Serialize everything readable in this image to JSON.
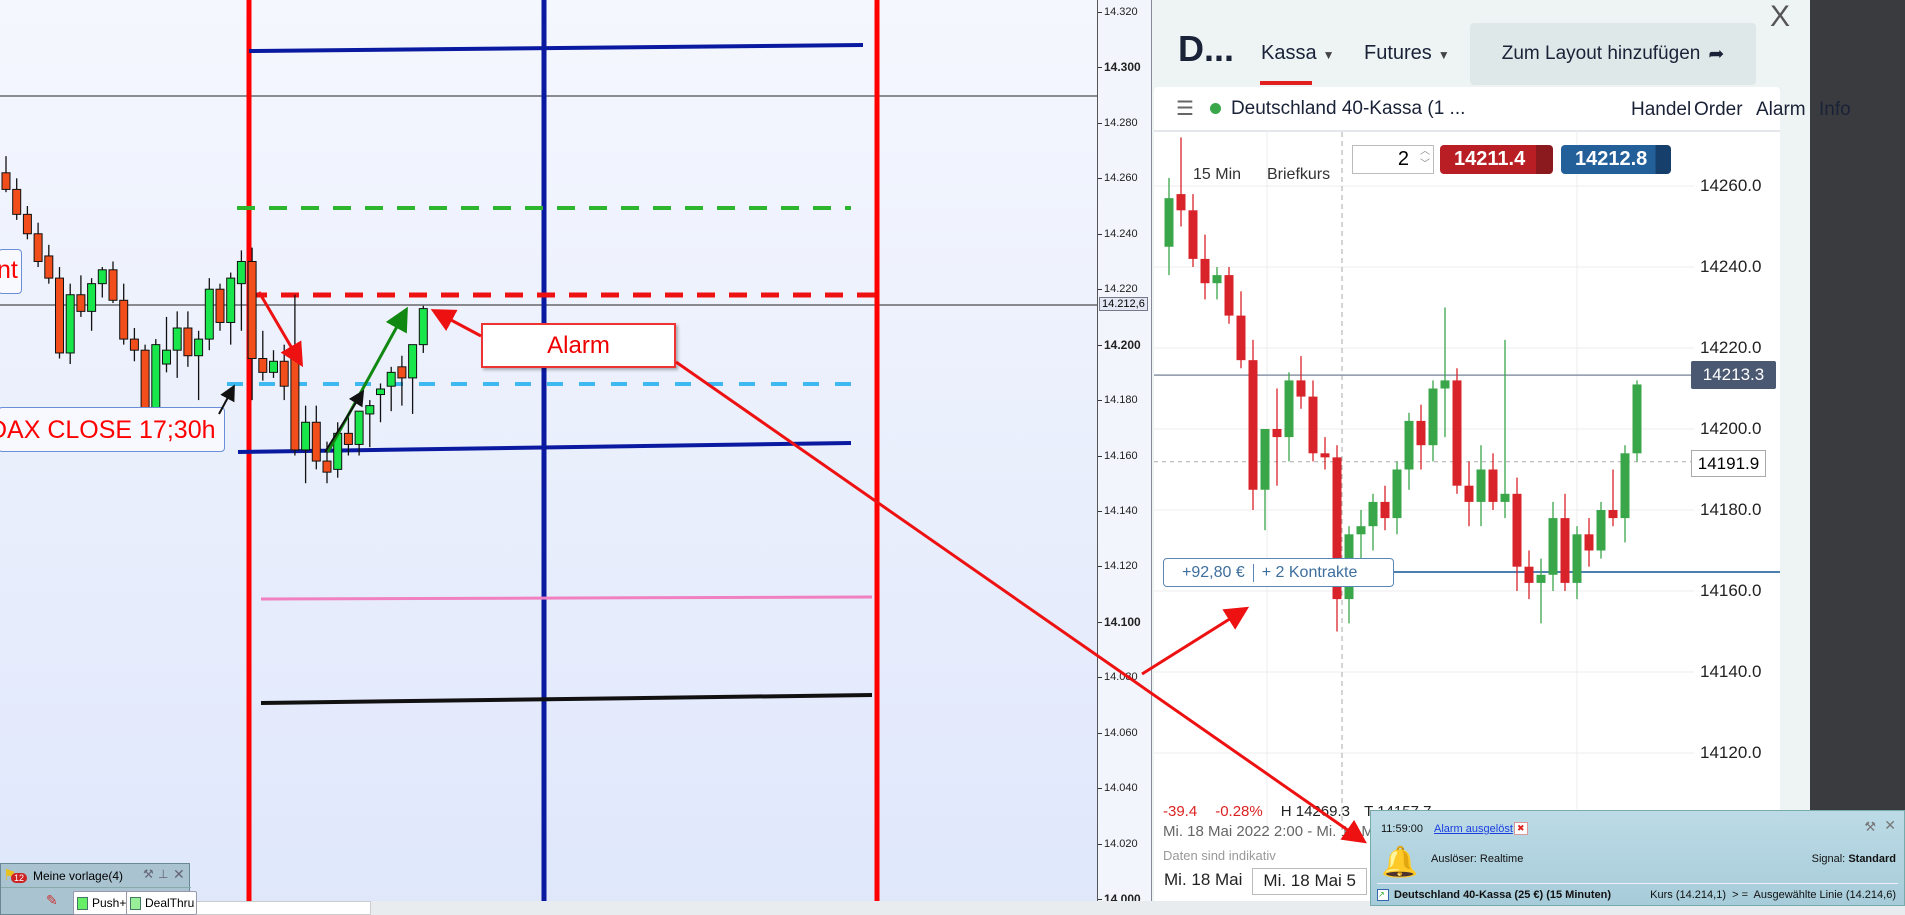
{
  "left_chart": {
    "axis_ticks": [
      "14.320",
      "14.300",
      "14.280",
      "14.260",
      "14.240",
      "14.220",
      "14.200",
      "14.180",
      "14.160",
      "14.140",
      "14.120",
      "14.100",
      "14.080",
      "14.060",
      "14.040",
      "14.020",
      "14.000"
    ],
    "bold_ticks": [
      "14.300",
      "14.200",
      "14.100",
      "14.000"
    ],
    "current_price": "14.212,6",
    "label_partial": "nt",
    "label_close": "DAX CLOSE 17;30h",
    "alarm_label": "Alarm",
    "colors": {
      "up": "#19e64a",
      "down": "#f24e1c",
      "vertical_red": "#ff0000",
      "vertical_blue": "#0a1aa0",
      "dash_green": "#2db52d",
      "dash_red": "#ee1111",
      "dash_lightblue": "#3db8f0",
      "pink": "#f080c0"
    },
    "candles": [
      [
        14262,
        14268,
        14255,
        14256
      ],
      [
        14256,
        14260,
        14245,
        14247
      ],
      [
        14247,
        14250,
        14238,
        14240
      ],
      [
        14240,
        14244,
        14228,
        14230
      ],
      [
        14232,
        14236,
        14222,
        14224
      ],
      [
        14224,
        14228,
        14195,
        14197
      ],
      [
        14197,
        14222,
        14193,
        14218
      ],
      [
        14218,
        14225,
        14210,
        14212
      ],
      [
        14212,
        14224,
        14205,
        14222
      ],
      [
        14222,
        14228,
        14217,
        14227
      ],
      [
        14227,
        14230,
        14215,
        14216
      ],
      [
        14216,
        14222,
        14200,
        14202
      ],
      [
        14202,
        14206,
        14194,
        14198
      ],
      [
        14198,
        14200,
        14170,
        14172
      ],
      [
        14172,
        14202,
        14168,
        14200
      ],
      [
        14193,
        14210,
        14190,
        14198
      ],
      [
        14198,
        14212,
        14188,
        14206
      ],
      [
        14206,
        14212,
        14192,
        14196
      ],
      [
        14196,
        14205,
        14180,
        14202
      ],
      [
        14202,
        14224,
        14198,
        14220
      ],
      [
        14220,
        14222,
        14205,
        14208
      ],
      [
        14208,
        14226,
        14200,
        14224
      ],
      [
        14222,
        14234,
        14205,
        14230
      ],
      [
        14230,
        14235,
        14180,
        14195
      ],
      [
        14195,
        14205,
        14187,
        14190
      ],
      [
        14190,
        14198,
        14188,
        14194
      ],
      [
        14194,
        14200,
        14180,
        14185
      ],
      [
        14196,
        14218,
        14160,
        14162
      ],
      [
        14162,
        14178,
        14150,
        14172
      ],
      [
        14172,
        14178,
        14155,
        14158
      ],
      [
        14158,
        14165,
        14150,
        14154
      ],
      [
        14155,
        14172,
        14152,
        14168
      ],
      [
        14168,
        14174,
        14160,
        14164
      ],
      [
        14164,
        14175,
        14160,
        14176
      ],
      [
        14175,
        14180,
        14163,
        14178
      ],
      [
        14182,
        14186,
        14172,
        14184
      ],
      [
        14185,
        14192,
        14176,
        14190
      ],
      [
        14192,
        14196,
        14178,
        14188
      ],
      [
        14188,
        14200,
        14175,
        14200
      ],
      [
        14200,
        14214,
        14197,
        14213
      ]
    ]
  },
  "right_panel": {
    "title": "D...",
    "tabs": [
      {
        "label": "Kassa"
      },
      {
        "label": "Futures"
      }
    ],
    "layout_button": "Zum Layout hinzufügen",
    "close_label": "X",
    "instrument": "Deutschland 40-Kassa (1 ...",
    "menu": [
      "Handel",
      "Order",
      "Alarm",
      "Info"
    ],
    "timeframe": "15 Min",
    "price_type": "Briefkurs",
    "quantity": "2",
    "sell_price": "14211.4",
    "buy_price": "14212.8",
    "axis_ticks": [
      "14260.0",
      "14240.0",
      "14220.0",
      "14200.0",
      "14180.0",
      "14160.0",
      "14140.0",
      "14120.0"
    ],
    "last_price": "14213.3",
    "crosshair_price": "14191.9",
    "pl": "+92,80 €",
    "contracts": "+ 2 Kontrakte",
    "change": "-39.4",
    "change_pct": "-0.28%",
    "high": "H 14269.3",
    "low": "T 14157.7",
    "date_range": "Mi. 18 Mai 2022 2:00 - Mi. 18 Mai",
    "indicative": "Daten sind indikativ",
    "date_tabs": [
      "Mi. 18 Mai",
      "Mi. 18 Mai 5"
    ],
    "colors": {
      "up": "#3aa64a",
      "down": "#d9232a",
      "sell": "#b81e23",
      "buy": "#23609a"
    },
    "candles": [
      [
        14245,
        14262,
        14238,
        14257
      ],
      [
        14258,
        14272,
        14250,
        14254
      ],
      [
        14254,
        14258,
        14240,
        14242
      ],
      [
        14242,
        14248,
        14232,
        14236
      ],
      [
        14236,
        14240,
        14232,
        14238
      ],
      [
        14238,
        14240,
        14226,
        14228
      ],
      [
        14228,
        14234,
        14215,
        14217
      ],
      [
        14217,
        14222,
        14180,
        14185
      ],
      [
        14185,
        14200,
        14175,
        14200
      ],
      [
        14200,
        14210,
        14186,
        14198
      ],
      [
        14198,
        14214,
        14192,
        14212
      ],
      [
        14212,
        14218,
        14205,
        14208
      ],
      [
        14208,
        14212,
        14192,
        14194
      ],
      [
        14194,
        14198,
        14190,
        14193
      ],
      [
        14193,
        14196,
        14150,
        14158
      ],
      [
        14158,
        14176,
        14152,
        14174
      ],
      [
        14174,
        14180,
        14168,
        14176
      ],
      [
        14176,
        14184,
        14170,
        14182
      ],
      [
        14182,
        14186,
        14175,
        14178
      ],
      [
        14178,
        14192,
        14174,
        14190
      ],
      [
        14190,
        14204,
        14185,
        14202
      ],
      [
        14202,
        14206,
        14190,
        14196
      ],
      [
        14196,
        14212,
        14192,
        14210
      ],
      [
        14210,
        14230,
        14198,
        14212
      ],
      [
        14212,
        14215,
        14184,
        14186
      ],
      [
        14186,
        14192,
        14176,
        14182
      ],
      [
        14182,
        14196,
        14176,
        14190
      ],
      [
        14190,
        14194,
        14180,
        14182
      ],
      [
        14182,
        14222,
        14178,
        14184
      ],
      [
        14184,
        14188,
        14160,
        14166
      ],
      [
        14166,
        14170,
        14158,
        14162
      ],
      [
        14162,
        14168,
        14152,
        14164
      ],
      [
        14164,
        14182,
        14160,
        14178
      ],
      [
        14178,
        14184,
        14160,
        14162
      ],
      [
        14162,
        14176,
        14158,
        14174
      ],
      [
        14174,
        14178,
        14166,
        14170
      ],
      [
        14170,
        14182,
        14168,
        14180
      ],
      [
        14180,
        14190,
        14176,
        14178
      ],
      [
        14178,
        14196,
        14172,
        14194
      ],
      [
        14194,
        14212,
        14192,
        14211
      ]
    ]
  },
  "alarm_popup": {
    "time": "11:59:00",
    "title": "Alarm ausgelöst",
    "trigger": "Auslöser: Realtime",
    "signal_label": "Signal:",
    "signal_value": "Standard",
    "instrument": "Deutschland 40-Kassa (25 €) (15 Minuten)",
    "condition": "Kurs (14.214,1)  > =  Ausgewählte Linie (14.214,6)"
  },
  "toolbar": {
    "badge": "12",
    "template": "Meine vorlage(4)",
    "push": "Push+",
    "dealthru": "DealThru"
  }
}
